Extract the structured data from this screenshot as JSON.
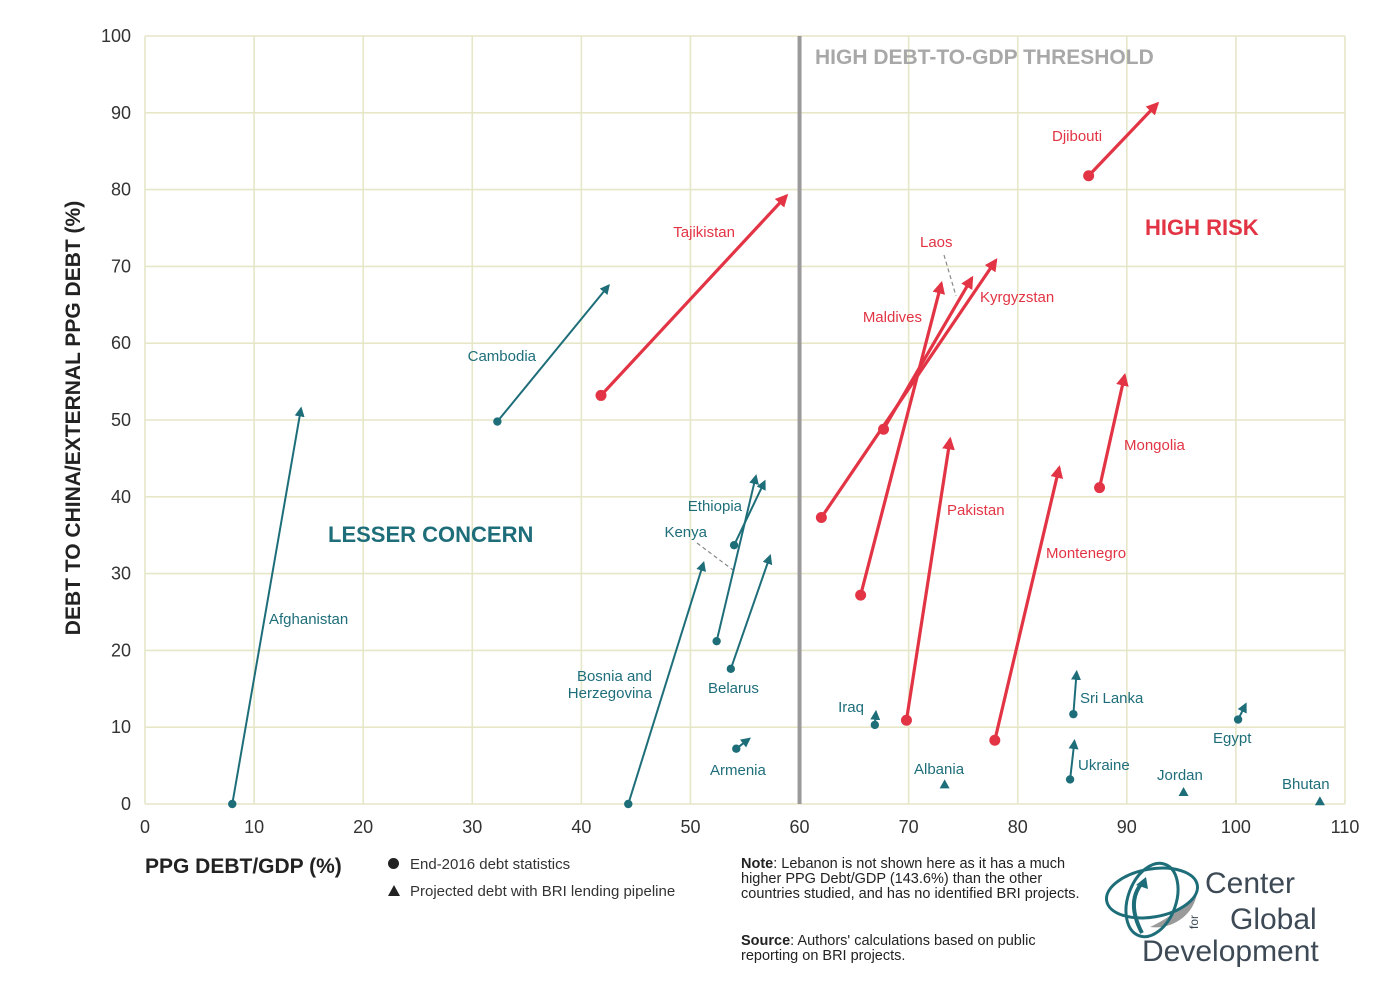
{
  "chart_data": {
    "type": "scatter",
    "xlabel": "PPG DEBT/GDP (%)",
    "ylabel": "DEBT TO CHINA/EXTERNAL PPG DEBT (%)",
    "xlim": [
      0,
      110
    ],
    "ylim": [
      0,
      100
    ],
    "x_ticks": [
      "0",
      "10",
      "20",
      "30",
      "40",
      "50",
      "60",
      "70",
      "80",
      "90",
      "100",
      "110"
    ],
    "y_ticks": [
      "0",
      "10",
      "20",
      "30",
      "40",
      "50",
      "60",
      "70",
      "80",
      "90",
      "100"
    ],
    "grid": true,
    "threshold": {
      "x": 60,
      "label": "HIGH DEBT-TO-GDP THRESHOLD"
    },
    "regions": {
      "lesser": "LESSER CONCERN",
      "high": "HIGH RISK"
    },
    "colors": {
      "teal": "#1e6e7a",
      "red": "#e23444",
      "threshold": "#9a9a9a",
      "grid": "#e6e6c8"
    },
    "legend": {
      "end2016": "End-2016 debt statistics",
      "projected": "Projected debt with BRI lending pipeline"
    },
    "countries": [
      {
        "name": "Afghanistan",
        "group": "teal",
        "start": [
          8,
          0
        ],
        "end": [
          14.3,
          51.5
        ]
      },
      {
        "name": "Cambodia",
        "group": "teal",
        "start": [
          32.3,
          49.8
        ],
        "end": [
          42.5,
          67.5
        ]
      },
      {
        "name": "Tajikistan",
        "group": "red",
        "start": [
          41.8,
          53.2
        ],
        "end": [
          58.8,
          79.2
        ]
      },
      {
        "name": "Bosnia and Herzegovina",
        "group": "teal",
        "start": [
          44.3,
          0
        ],
        "end": [
          51.2,
          31.4
        ]
      },
      {
        "name": "Ethiopia",
        "group": "teal",
        "start": [
          52.4,
          21.2
        ],
        "end": [
          56,
          42.7
        ]
      },
      {
        "name": "Kenya",
        "group": "teal",
        "start": [
          54,
          33.7
        ],
        "end": [
          56.8,
          42
        ]
      },
      {
        "name": "Belarus",
        "group": "teal",
        "start": [
          53.7,
          17.6
        ],
        "end": [
          57.3,
          32.3
        ]
      },
      {
        "name": "Armenia",
        "group": "teal",
        "start": [
          54.2,
          7.2
        ],
        "end": [
          55.4,
          8.5
        ]
      },
      {
        "name": "Laos",
        "group": "red",
        "start": [
          62,
          37.3
        ],
        "end": [
          78,
          70.8
        ]
      },
      {
        "name": "Kyrgyzstan",
        "group": "red",
        "start": [
          67.7,
          48.8
        ],
        "end": [
          75.8,
          68.5
        ]
      },
      {
        "name": "Maldives",
        "group": "red",
        "start": [
          65.6,
          27.2
        ],
        "end": [
          73,
          67.8
        ]
      },
      {
        "name": "Pakistan",
        "group": "red",
        "start": [
          69.8,
          10.9
        ],
        "end": [
          73.8,
          47.5
        ]
      },
      {
        "name": "Montenegro",
        "group": "red",
        "start": [
          77.9,
          8.3
        ],
        "end": [
          83.8,
          43.8
        ]
      },
      {
        "name": "Mongolia",
        "group": "red",
        "start": [
          87.5,
          41.2
        ],
        "end": [
          89.8,
          55.8
        ]
      },
      {
        "name": "Djibouti",
        "group": "red",
        "start": [
          86.5,
          81.8
        ],
        "end": [
          92.8,
          91.2
        ]
      },
      {
        "name": "Iraq",
        "group": "teal",
        "start": [
          66.9,
          10.3
        ],
        "end": [
          67,
          12
        ]
      },
      {
        "name": "Albania",
        "group": "teal",
        "start": [
          73.2,
          2.2
        ],
        "end": [
          73.3,
          2.3
        ]
      },
      {
        "name": "Sri Lanka",
        "group": "teal",
        "start": [
          85.1,
          11.7
        ],
        "end": [
          85.4,
          17.2
        ]
      },
      {
        "name": "Ukraine",
        "group": "teal",
        "start": [
          84.8,
          3.2
        ],
        "end": [
          85.2,
          8.2
        ]
      },
      {
        "name": "Jordan",
        "group": "teal",
        "start": [
          95.1,
          1.2
        ],
        "end": [
          95.2,
          1.3
        ]
      },
      {
        "name": "Egypt",
        "group": "teal",
        "start": [
          100.2,
          11
        ],
        "end": [
          100.9,
          13
        ]
      },
      {
        "name": "Bhutan",
        "group": "teal",
        "start": [
          107.6,
          0
        ],
        "end": [
          107.7,
          0.1
        ]
      }
    ]
  },
  "note": {
    "label": "Note",
    "text": ": Lebanon is not shown here as it has a much higher PPG Debt/GDP (143.6%) than the other countries studied, and has no identified BRI projects."
  },
  "source": {
    "label": "Source",
    "text": ": Authors' calculations based on public reporting on BRI projects."
  },
  "logo": {
    "line1": "Center",
    "for": "for",
    "line2": "Global",
    "line3": "Development"
  }
}
